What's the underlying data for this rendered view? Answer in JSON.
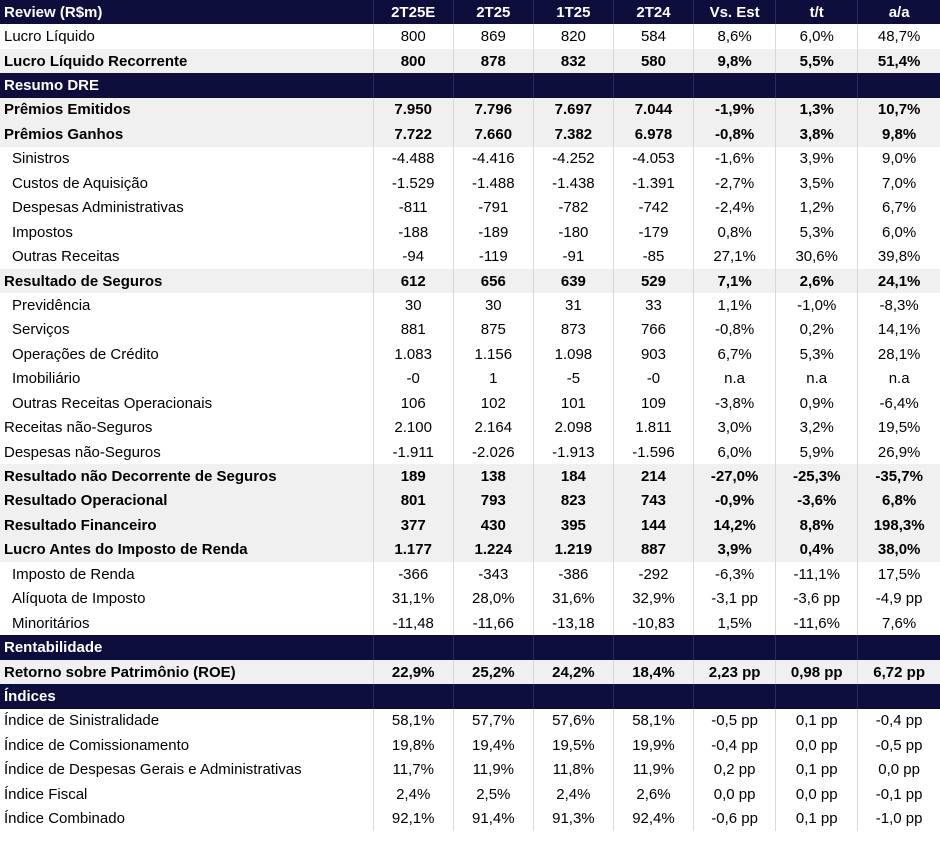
{
  "table": {
    "columns": [
      "Review (R$m)",
      "2T25E",
      "2T25",
      "1T25",
      "2T24",
      "Vs. Est",
      "t/t",
      "a/a"
    ],
    "rows": [
      {
        "type": "row",
        "bold": false,
        "shade": false,
        "indent": false,
        "label": "Lucro Líquido",
        "values": [
          "800",
          "869",
          "820",
          "584",
          "8,6%",
          "6,0%",
          "48,7%"
        ]
      },
      {
        "type": "row",
        "bold": true,
        "shade": true,
        "indent": false,
        "label": "Lucro Líquido Recorrente",
        "values": [
          "800",
          "878",
          "832",
          "580",
          "9,8%",
          "5,5%",
          "51,4%"
        ]
      },
      {
        "type": "section",
        "label": "Resumo DRE"
      },
      {
        "type": "row",
        "bold": true,
        "shade": true,
        "indent": false,
        "label": "Prêmios Emitidos",
        "values": [
          "7.950",
          "7.796",
          "7.697",
          "7.044",
          "-1,9%",
          "1,3%",
          "10,7%"
        ]
      },
      {
        "type": "row",
        "bold": true,
        "shade": true,
        "indent": false,
        "label": "Prêmios Ganhos",
        "values": [
          "7.722",
          "7.660",
          "7.382",
          "6.978",
          "-0,8%",
          "3,8%",
          "9,8%"
        ]
      },
      {
        "type": "row",
        "bold": false,
        "shade": false,
        "indent": true,
        "label": "Sinistros",
        "values": [
          "-4.488",
          "-4.416",
          "-4.252",
          "-4.053",
          "-1,6%",
          "3,9%",
          "9,0%"
        ]
      },
      {
        "type": "row",
        "bold": false,
        "shade": false,
        "indent": true,
        "label": "Custos de Aquisição",
        "values": [
          "-1.529",
          "-1.488",
          "-1.438",
          "-1.391",
          "-2,7%",
          "3,5%",
          "7,0%"
        ]
      },
      {
        "type": "row",
        "bold": false,
        "shade": false,
        "indent": true,
        "label": "Despesas Administrativas",
        "values": [
          "-811",
          "-791",
          "-782",
          "-742",
          "-2,4%",
          "1,2%",
          "6,7%"
        ]
      },
      {
        "type": "row",
        "bold": false,
        "shade": false,
        "indent": true,
        "label": "Impostos",
        "values": [
          "-188",
          "-189",
          "-180",
          "-179",
          "0,8%",
          "5,3%",
          "6,0%"
        ]
      },
      {
        "type": "row",
        "bold": false,
        "shade": false,
        "indent": true,
        "label": "Outras Receitas",
        "values": [
          "-94",
          "-119",
          "-91",
          "-85",
          "27,1%",
          "30,6%",
          "39,8%"
        ]
      },
      {
        "type": "row",
        "bold": true,
        "shade": true,
        "indent": false,
        "label": "Resultado de Seguros",
        "values": [
          "612",
          "656",
          "639",
          "529",
          "7,1%",
          "2,6%",
          "24,1%"
        ]
      },
      {
        "type": "row",
        "bold": false,
        "shade": false,
        "indent": true,
        "label": "Previdência",
        "values": [
          "30",
          "30",
          "31",
          "33",
          "1,1%",
          "-1,0%",
          "-8,3%"
        ]
      },
      {
        "type": "row",
        "bold": false,
        "shade": false,
        "indent": true,
        "label": "Serviços",
        "values": [
          "881",
          "875",
          "873",
          "766",
          "-0,8%",
          "0,2%",
          "14,1%"
        ]
      },
      {
        "type": "row",
        "bold": false,
        "shade": false,
        "indent": true,
        "label": "Operações de Crédito",
        "values": [
          "1.083",
          "1.156",
          "1.098",
          "903",
          "6,7%",
          "5,3%",
          "28,1%"
        ]
      },
      {
        "type": "row",
        "bold": false,
        "shade": false,
        "indent": true,
        "label": "Imobiliário",
        "values": [
          "-0",
          "1",
          "-5",
          "-0",
          "n.a",
          "n.a",
          "n.a"
        ]
      },
      {
        "type": "row",
        "bold": false,
        "shade": false,
        "indent": true,
        "label": "Outras Receitas Operacionais",
        "values": [
          "106",
          "102",
          "101",
          "109",
          "-3,8%",
          "0,9%",
          "-6,4%"
        ]
      },
      {
        "type": "row",
        "bold": false,
        "shade": false,
        "indent": false,
        "label": "Receitas não-Seguros",
        "values": [
          "2.100",
          "2.164",
          "2.098",
          "1.811",
          "3,0%",
          "3,2%",
          "19,5%"
        ]
      },
      {
        "type": "row",
        "bold": false,
        "shade": false,
        "indent": false,
        "label": "Despesas não-Seguros",
        "values": [
          "-1.911",
          "-2.026",
          "-1.913",
          "-1.596",
          "6,0%",
          "5,9%",
          "26,9%"
        ]
      },
      {
        "type": "row",
        "bold": true,
        "shade": true,
        "indent": false,
        "label": "Resultado não Decorrente de Seguros",
        "values": [
          "189",
          "138",
          "184",
          "214",
          "-27,0%",
          "-25,3%",
          "-35,7%"
        ]
      },
      {
        "type": "row",
        "bold": true,
        "shade": true,
        "indent": false,
        "label": "Resultado Operacional",
        "values": [
          "801",
          "793",
          "823",
          "743",
          "-0,9%",
          "-3,6%",
          "6,8%"
        ]
      },
      {
        "type": "row",
        "bold": true,
        "shade": true,
        "indent": false,
        "label": "Resultado Financeiro",
        "values": [
          "377",
          "430",
          "395",
          "144",
          "14,2%",
          "8,8%",
          "198,3%"
        ]
      },
      {
        "type": "row",
        "bold": true,
        "shade": true,
        "indent": false,
        "label": "Lucro Antes do Imposto de Renda",
        "values": [
          "1.177",
          "1.224",
          "1.219",
          "887",
          "3,9%",
          "0,4%",
          "38,0%"
        ]
      },
      {
        "type": "row",
        "bold": false,
        "shade": false,
        "indent": true,
        "label": "Imposto de Renda",
        "values": [
          "-366",
          "-343",
          "-386",
          "-292",
          "-6,3%",
          "-11,1%",
          "17,5%"
        ]
      },
      {
        "type": "row",
        "bold": false,
        "shade": false,
        "indent": true,
        "label": "Alíquota de Imposto",
        "values": [
          "31,1%",
          "28,0%",
          "31,6%",
          "32,9%",
          "-3,1 pp",
          "-3,6 pp",
          "-4,9 pp"
        ]
      },
      {
        "type": "row",
        "bold": false,
        "shade": false,
        "indent": true,
        "label": "Minoritários",
        "values": [
          "-11,48",
          "-11,66",
          "-13,18",
          "-10,83",
          "1,5%",
          "-11,6%",
          "7,6%"
        ]
      },
      {
        "type": "section",
        "label": "Rentabilidade"
      },
      {
        "type": "row",
        "bold": true,
        "shade": true,
        "indent": false,
        "label": "Retorno sobre Patrimônio (ROE)",
        "values": [
          "22,9%",
          "25,2%",
          "24,2%",
          "18,4%",
          "2,23 pp",
          "0,98 pp",
          "6,72 pp"
        ]
      },
      {
        "type": "section",
        "label": "Índices"
      },
      {
        "type": "row",
        "bold": false,
        "shade": false,
        "indent": false,
        "label": "Índice de Sinistralidade",
        "values": [
          "58,1%",
          "57,7%",
          "57,6%",
          "58,1%",
          "-0,5 pp",
          "0,1 pp",
          "-0,4 pp"
        ]
      },
      {
        "type": "row",
        "bold": false,
        "shade": false,
        "indent": false,
        "label": "Índice de Comissionamento",
        "values": [
          "19,8%",
          "19,4%",
          "19,5%",
          "19,9%",
          "-0,4 pp",
          "0,0 pp",
          "-0,5 pp"
        ]
      },
      {
        "type": "row",
        "bold": false,
        "shade": false,
        "indent": false,
        "label": "Índice de Despesas Gerais e Administrativas",
        "values": [
          "11,7%",
          "11,9%",
          "11,8%",
          "11,9%",
          "0,2 pp",
          "0,1 pp",
          "0,0 pp"
        ]
      },
      {
        "type": "row",
        "bold": false,
        "shade": false,
        "indent": false,
        "label": "Índice Fiscal",
        "values": [
          "2,4%",
          "2,5%",
          "2,4%",
          "2,6%",
          "0,0 pp",
          "0,0 pp",
          "-0,1 pp"
        ]
      },
      {
        "type": "row",
        "bold": false,
        "shade": false,
        "indent": false,
        "label": "Índice Combinado",
        "values": [
          "92,1%",
          "91,4%",
          "91,3%",
          "92,4%",
          "-0,6 pp",
          "0,1 pp",
          "-1,0 pp"
        ]
      }
    ]
  },
  "colors": {
    "header_bg": "#0e0e3c",
    "header_fg": "#ffffff",
    "shade_bg": "#f0f0f0"
  }
}
